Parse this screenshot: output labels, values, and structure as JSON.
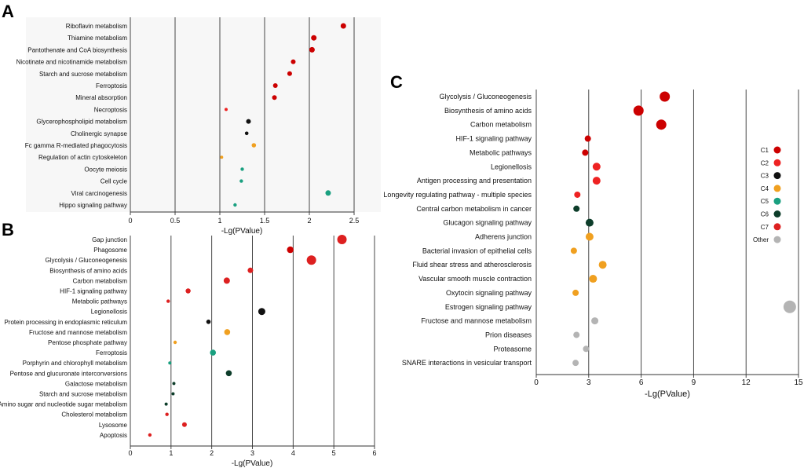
{
  "colors": {
    "C1": "#cc0000",
    "C2": "#ee2222",
    "C3": "#111111",
    "C4": "#f0a020",
    "C5": "#1aa080",
    "C6": "#0d3d2a",
    "C7": "#dd2020",
    "Other": "#b4b4b4"
  },
  "chart_data": [
    {
      "panel": "A",
      "type": "scatter",
      "xlabel": "-Lg(PValue)",
      "xlim": [
        0,
        2.5
      ],
      "xticks": [
        "0",
        "0.5",
        "1",
        "1.5",
        "2",
        "2.5"
      ],
      "points": [
        {
          "label": "Riboflavin metabolism",
          "x": 2.38,
          "size": 3.5,
          "group": "C1"
        },
        {
          "label": "Thiamine metabolism",
          "x": 2.05,
          "size": 3.5,
          "group": "C1"
        },
        {
          "label": "Pantothenate and CoA biosynthesis",
          "x": 2.03,
          "size": 3.5,
          "group": "C1"
        },
        {
          "label": "Nicotinate and nicotinamide metabolism",
          "x": 1.82,
          "size": 3.0,
          "group": "C1"
        },
        {
          "label": "Starch and sucrose metabolism",
          "x": 1.78,
          "size": 3.0,
          "group": "C1"
        },
        {
          "label": "Ferroptosis",
          "x": 1.62,
          "size": 3.0,
          "group": "C1"
        },
        {
          "label": "Mineral absorption",
          "x": 1.61,
          "size": 3.0,
          "group": "C1"
        },
        {
          "label": "Necroptosis",
          "x": 1.07,
          "size": 2.0,
          "group": "C2"
        },
        {
          "label": "Glycerophospholipid metabolism",
          "x": 1.32,
          "size": 3.0,
          "group": "C3"
        },
        {
          "label": "Cholinergic synapse",
          "x": 1.3,
          "size": 2.3,
          "group": "C3"
        },
        {
          "label": "Fc gamma R-mediated phagocytosis",
          "x": 1.38,
          "size": 2.8,
          "group": "C4"
        },
        {
          "label": "Regulation of actin cytoskeleton",
          "x": 1.02,
          "size": 2.0,
          "group": "C4"
        },
        {
          "label": "Oocyte meiosis",
          "x": 1.25,
          "size": 2.2,
          "group": "C5"
        },
        {
          "label": "Cell cycle",
          "x": 1.24,
          "size": 2.2,
          "group": "C5"
        },
        {
          "label": "Viral carcinogenesis",
          "x": 2.21,
          "size": 3.5,
          "group": "C5"
        },
        {
          "label": "Hippo signaling pathway",
          "x": 1.17,
          "size": 2.2,
          "group": "C5"
        }
      ]
    },
    {
      "panel": "B",
      "type": "scatter",
      "xlabel": "-Lg(PValue)",
      "xlim": [
        0,
        6
      ],
      "xticks": [
        "0",
        "1",
        "2",
        "3",
        "4",
        "5",
        "6"
      ],
      "points": [
        {
          "label": "Gap junction",
          "x": 5.2,
          "size": 6.0,
          "group": "C7"
        },
        {
          "label": "Phagosome",
          "x": 3.93,
          "size": 4.2,
          "group": "C1"
        },
        {
          "label": "Glycolysis / Gluconeogenesis",
          "x": 4.45,
          "size": 6.0,
          "group": "C7"
        },
        {
          "label": "Biosynthesis of amino acids",
          "x": 2.95,
          "size": 3.5,
          "group": "C7"
        },
        {
          "label": "Carbon metabolism",
          "x": 2.37,
          "size": 4.0,
          "group": "C7"
        },
        {
          "label": "HIF-1 signaling pathway",
          "x": 1.42,
          "size": 3.2,
          "group": "C7"
        },
        {
          "label": "Metabolic pathways",
          "x": 0.93,
          "size": 2.2,
          "group": "C7"
        },
        {
          "label": "Legionellosis",
          "x": 3.23,
          "size": 4.5,
          "group": "C3"
        },
        {
          "label": "Protein processing in endoplasmic reticulum",
          "x": 1.92,
          "size": 2.8,
          "group": "C3"
        },
        {
          "label": "Fructose and mannose metabolism",
          "x": 2.38,
          "size": 3.8,
          "group": "C4"
        },
        {
          "label": "Pentose phosphate pathway",
          "x": 1.1,
          "size": 2.2,
          "group": "C4"
        },
        {
          "label": "Ferroptosis",
          "x": 2.03,
          "size": 3.8,
          "group": "C5"
        },
        {
          "label": "Porphyrin and chlorophyll metabolism",
          "x": 0.97,
          "size": 2.0,
          "group": "C5"
        },
        {
          "label": "Pentose and glucuronate interconversions",
          "x": 2.42,
          "size": 3.8,
          "group": "C6"
        },
        {
          "label": "Galactose metabolism",
          "x": 1.07,
          "size": 2.0,
          "group": "C6"
        },
        {
          "label": "Starch and sucrose metabolism",
          "x": 1.05,
          "size": 2.0,
          "group": "C6"
        },
        {
          "label": "Amino sugar and nucleotide sugar metabolism",
          "x": 0.88,
          "size": 2.0,
          "group": "C6"
        },
        {
          "label": "Cholesterol metabolism",
          "x": 0.9,
          "size": 2.2,
          "group": "C7"
        },
        {
          "label": "Lysosome",
          "x": 1.33,
          "size": 3.0,
          "group": "C7"
        },
        {
          "label": "Apoptosis",
          "x": 0.48,
          "size": 2.2,
          "group": "C7"
        }
      ]
    },
    {
      "panel": "C",
      "type": "scatter",
      "xlabel": "-Lg(PValue)",
      "xlim": [
        0,
        15
      ],
      "xticks": [
        "0",
        "3",
        "6",
        "9",
        "12",
        "15"
      ],
      "legend": [
        "C1",
        "C2",
        "C3",
        "C4",
        "C5",
        "C6",
        "C7",
        "Other"
      ],
      "points": [
        {
          "label": "Glycolysis / Gluconeogenesis",
          "x": 7.35,
          "size": 6.5,
          "group": "C1"
        },
        {
          "label": "Biosynthesis of amino acids",
          "x": 5.85,
          "size": 6.5,
          "group": "C1"
        },
        {
          "label": "Carbon metabolism",
          "x": 7.15,
          "size": 6.5,
          "group": "C1"
        },
        {
          "label": "HIF-1 signaling pathway",
          "x": 2.95,
          "size": 4.0,
          "group": "C1"
        },
        {
          "label": "Metabolic pathways",
          "x": 2.8,
          "size": 4.0,
          "group": "C1"
        },
        {
          "label": "Legionellosis",
          "x": 3.45,
          "size": 5.0,
          "group": "C2"
        },
        {
          "label": "Antigen processing and presentation",
          "x": 3.45,
          "size": 5.0,
          "group": "C2"
        },
        {
          "label": "Longevity regulating pathway - multiple species",
          "x": 2.35,
          "size": 4.0,
          "group": "C2"
        },
        {
          "label": "Central carbon metabolism in cancer",
          "x": 2.3,
          "size": 4.0,
          "group": "C6"
        },
        {
          "label": "Glucagon signaling pathway",
          "x": 3.05,
          "size": 5.0,
          "group": "C6"
        },
        {
          "label": "Adherens junction",
          "x": 3.05,
          "size": 5.0,
          "group": "C4"
        },
        {
          "label": "Bacterial invasion of epithelial cells",
          "x": 2.15,
          "size": 4.0,
          "group": "C4"
        },
        {
          "label": "Fluid shear stress and atherosclerosis",
          "x": 3.8,
          "size": 5.0,
          "group": "C4"
        },
        {
          "label": "Vascular smooth muscle contraction",
          "x": 3.25,
          "size": 5.0,
          "group": "C4"
        },
        {
          "label": "Oxytocin signaling pathway",
          "x": 2.25,
          "size": 4.0,
          "group": "C4"
        },
        {
          "label": "Estrogen signaling pathway",
          "x": 14.5,
          "size": 8.0,
          "group": "Other"
        },
        {
          "label": "Fructose and mannose metabolism",
          "x": 3.35,
          "size": 4.5,
          "group": "Other"
        },
        {
          "label": "Prion diseases",
          "x": 2.3,
          "size": 4.0,
          "group": "Other"
        },
        {
          "label": "Proteasome",
          "x": 2.85,
          "size": 4.0,
          "group": "Other"
        },
        {
          "label": "SNARE interactions in vesicular transport",
          "x": 2.25,
          "size": 4.0,
          "group": "Other"
        }
      ]
    }
  ]
}
